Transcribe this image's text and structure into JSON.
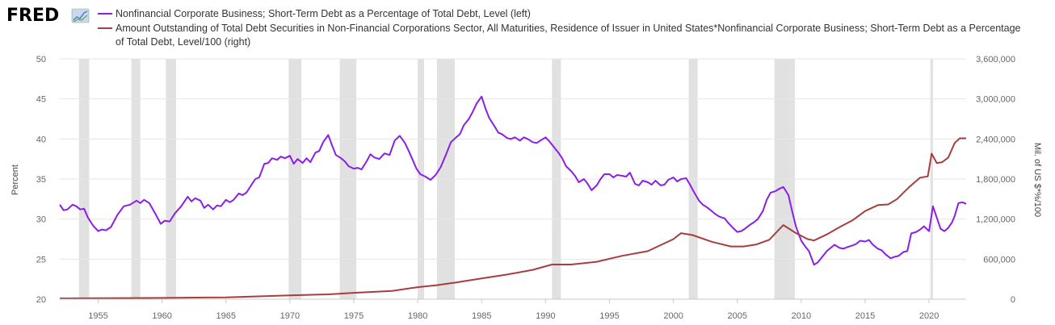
{
  "logo": {
    "text": "FRED",
    "icon": "fred-chart-icon"
  },
  "legend": [
    {
      "label": "Nonfinancial Corporate Business; Short-Term Debt as a Percentage of Total Debt, Level (left)"
    },
    {
      "label_line1": "Amount Outstanding of Total Debt Securities in Non-Financial Corporations Sector, All Maturities, Residence of Issuer in United States*Nonfinancial Corporate Business; Short-Term Debt as a Percentage",
      "label_line2": "of Total Debt, Level/100 (right)"
    }
  ],
  "colors": {
    "series1": "#8a1fe6",
    "series2": "#a73e3e",
    "recession": "#e1e1e1",
    "grid": "#e6e6e6"
  },
  "chart_data": {
    "type": "line",
    "x_axis": {
      "ticks": [
        "1955",
        "1960",
        "1965",
        "1970",
        "1975",
        "1980",
        "1985",
        "1990",
        "1995",
        "2000",
        "2005",
        "2010",
        "2015",
        "2020"
      ],
      "range": [
        1952.0,
        2022.9
      ]
    },
    "y_left": {
      "label": "Percent",
      "range": [
        20,
        50
      ],
      "ticks": [
        "20",
        "25",
        "30",
        "35",
        "40",
        "45",
        "50"
      ]
    },
    "y_right": {
      "label": "Mil. of US $*%/100",
      "range": [
        0,
        3600000
      ],
      "ticks": [
        "0",
        "600,000",
        "1,200,000",
        "1,800,000",
        "2,400,000",
        "3,000,000",
        "3,600,000"
      ]
    },
    "grid": "horizontal",
    "recessions": [
      [
        1953.5,
        1954.3
      ],
      [
        1957.6,
        1958.3
      ],
      [
        1960.3,
        1961.1
      ],
      [
        1969.9,
        1970.9
      ],
      [
        1973.9,
        1975.2
      ],
      [
        1980.0,
        1980.5
      ],
      [
        1981.5,
        1982.9
      ],
      [
        1990.5,
        1991.2
      ],
      [
        2001.2,
        2001.9
      ],
      [
        2007.9,
        2009.5
      ],
      [
        2020.1,
        2020.3
      ]
    ],
    "series": [
      {
        "name": "Nonfinancial Corporate Business; Short-Term Debt as a Percentage of Total Debt, Level (left)",
        "axis": "left",
        "points": [
          [
            1952.0,
            31.8
          ],
          [
            1952.3,
            31.1
          ],
          [
            1952.6,
            31.2
          ],
          [
            1953.0,
            31.8
          ],
          [
            1953.3,
            31.6
          ],
          [
            1953.6,
            31.2
          ],
          [
            1953.9,
            31.3
          ],
          [
            1954.2,
            30.2
          ],
          [
            1954.6,
            29.2
          ],
          [
            1955.0,
            28.5
          ],
          [
            1955.3,
            28.7
          ],
          [
            1955.6,
            28.6
          ],
          [
            1956.0,
            29.0
          ],
          [
            1956.5,
            30.5
          ],
          [
            1957.0,
            31.6
          ],
          [
            1957.5,
            31.8
          ],
          [
            1958.0,
            32.3
          ],
          [
            1958.3,
            32.0
          ],
          [
            1958.6,
            32.4
          ],
          [
            1959.0,
            32.0
          ],
          [
            1959.5,
            30.6
          ],
          [
            1959.9,
            29.4
          ],
          [
            1960.2,
            29.8
          ],
          [
            1960.6,
            29.7
          ],
          [
            1961.0,
            30.7
          ],
          [
            1961.5,
            31.6
          ],
          [
            1962.0,
            32.8
          ],
          [
            1962.3,
            32.2
          ],
          [
            1962.6,
            32.6
          ],
          [
            1963.0,
            32.3
          ],
          [
            1963.3,
            31.4
          ],
          [
            1963.6,
            31.8
          ],
          [
            1964.0,
            31.2
          ],
          [
            1964.3,
            31.7
          ],
          [
            1964.6,
            31.6
          ],
          [
            1965.0,
            32.4
          ],
          [
            1965.3,
            32.1
          ],
          [
            1965.6,
            32.4
          ],
          [
            1966.0,
            33.2
          ],
          [
            1966.3,
            33.0
          ],
          [
            1966.6,
            33.3
          ],
          [
            1967.0,
            34.3
          ],
          [
            1967.3,
            35.0
          ],
          [
            1967.6,
            35.2
          ],
          [
            1968.0,
            36.9
          ],
          [
            1968.3,
            37.0
          ],
          [
            1968.6,
            37.6
          ],
          [
            1969.0,
            37.4
          ],
          [
            1969.3,
            37.8
          ],
          [
            1969.6,
            37.6
          ],
          [
            1970.0,
            37.9
          ],
          [
            1970.3,
            36.9
          ],
          [
            1970.6,
            37.5
          ],
          [
            1971.0,
            37.0
          ],
          [
            1971.3,
            37.6
          ],
          [
            1971.6,
            37.1
          ],
          [
            1972.0,
            38.3
          ],
          [
            1972.3,
            38.5
          ],
          [
            1972.6,
            39.6
          ],
          [
            1973.0,
            40.5
          ],
          [
            1973.3,
            39.2
          ],
          [
            1973.6,
            38.0
          ],
          [
            1974.0,
            37.6
          ],
          [
            1974.3,
            37.2
          ],
          [
            1974.6,
            36.6
          ],
          [
            1975.0,
            36.3
          ],
          [
            1975.3,
            36.4
          ],
          [
            1975.6,
            36.2
          ],
          [
            1976.0,
            37.2
          ],
          [
            1976.3,
            38.1
          ],
          [
            1976.6,
            37.7
          ],
          [
            1977.0,
            37.5
          ],
          [
            1977.4,
            38.2
          ],
          [
            1977.8,
            38.0
          ],
          [
            1978.2,
            39.8
          ],
          [
            1978.6,
            40.4
          ],
          [
            1979.0,
            39.5
          ],
          [
            1979.3,
            38.5
          ],
          [
            1979.6,
            37.4
          ],
          [
            1979.9,
            36.3
          ],
          [
            1980.2,
            35.6
          ],
          [
            1980.6,
            35.3
          ],
          [
            1981.0,
            34.9
          ],
          [
            1981.4,
            35.5
          ],
          [
            1981.8,
            36.5
          ],
          [
            1982.2,
            38.0
          ],
          [
            1982.6,
            39.6
          ],
          [
            1983.0,
            40.2
          ],
          [
            1983.3,
            40.6
          ],
          [
            1983.6,
            41.7
          ],
          [
            1984.0,
            42.5
          ],
          [
            1984.3,
            43.4
          ],
          [
            1984.6,
            44.4
          ],
          [
            1985.0,
            45.3
          ],
          [
            1985.3,
            43.8
          ],
          [
            1985.6,
            42.6
          ],
          [
            1986.0,
            41.6
          ],
          [
            1986.3,
            40.8
          ],
          [
            1986.6,
            40.6
          ],
          [
            1987.0,
            40.1
          ],
          [
            1987.3,
            40.0
          ],
          [
            1987.6,
            40.2
          ],
          [
            1988.0,
            39.8
          ],
          [
            1988.3,
            40.2
          ],
          [
            1988.6,
            40.0
          ],
          [
            1989.0,
            39.6
          ],
          [
            1989.3,
            39.5
          ],
          [
            1989.6,
            39.8
          ],
          [
            1990.0,
            40.2
          ],
          [
            1990.3,
            39.7
          ],
          [
            1990.6,
            39.1
          ],
          [
            1991.0,
            38.3
          ],
          [
            1991.3,
            37.6
          ],
          [
            1991.6,
            36.6
          ],
          [
            1992.0,
            36.0
          ],
          [
            1992.3,
            35.4
          ],
          [
            1992.6,
            34.6
          ],
          [
            1993.0,
            35.0
          ],
          [
            1993.3,
            34.4
          ],
          [
            1993.6,
            33.6
          ],
          [
            1994.0,
            34.2
          ],
          [
            1994.3,
            35.0
          ],
          [
            1994.6,
            35.6
          ],
          [
            1995.0,
            35.6
          ],
          [
            1995.3,
            35.2
          ],
          [
            1995.6,
            35.5
          ],
          [
            1996.0,
            35.4
          ],
          [
            1996.3,
            35.3
          ],
          [
            1996.6,
            35.8
          ],
          [
            1997.0,
            34.4
          ],
          [
            1997.3,
            34.2
          ],
          [
            1997.6,
            34.8
          ],
          [
            1998.0,
            34.6
          ],
          [
            1998.3,
            34.3
          ],
          [
            1998.6,
            34.8
          ],
          [
            1999.0,
            34.2
          ],
          [
            1999.3,
            34.3
          ],
          [
            1999.6,
            34.9
          ],
          [
            2000.0,
            35.2
          ],
          [
            2000.3,
            34.7
          ],
          [
            2000.6,
            35.0
          ],
          [
            2001.0,
            35.1
          ],
          [
            2001.3,
            34.3
          ],
          [
            2001.6,
            33.4
          ],
          [
            2002.0,
            32.3
          ],
          [
            2002.3,
            31.8
          ],
          [
            2002.6,
            31.5
          ],
          [
            2003.0,
            31.0
          ],
          [
            2003.3,
            30.6
          ],
          [
            2003.6,
            30.3
          ],
          [
            2004.0,
            30.1
          ],
          [
            2004.3,
            29.5
          ],
          [
            2004.6,
            29.0
          ],
          [
            2005.0,
            28.4
          ],
          [
            2005.3,
            28.5
          ],
          [
            2005.6,
            28.8
          ],
          [
            2006.0,
            29.3
          ],
          [
            2006.3,
            29.6
          ],
          [
            2006.6,
            30.0
          ],
          [
            2007.0,
            31.0
          ],
          [
            2007.3,
            32.4
          ],
          [
            2007.6,
            33.3
          ],
          [
            2008.0,
            33.5
          ],
          [
            2008.3,
            33.8
          ],
          [
            2008.6,
            34.0
          ],
          [
            2009.0,
            33.0
          ],
          [
            2009.3,
            30.9
          ],
          [
            2009.6,
            29.0
          ],
          [
            2010.0,
            27.3
          ],
          [
            2010.3,
            26.6
          ],
          [
            2010.6,
            26.0
          ],
          [
            2011.0,
            24.3
          ],
          [
            2011.3,
            24.6
          ],
          [
            2011.6,
            25.2
          ],
          [
            2012.0,
            26.0
          ],
          [
            2012.3,
            26.4
          ],
          [
            2012.6,
            26.8
          ],
          [
            2013.0,
            26.4
          ],
          [
            2013.3,
            26.3
          ],
          [
            2013.6,
            26.5
          ],
          [
            2014.0,
            26.7
          ],
          [
            2014.3,
            26.9
          ],
          [
            2014.6,
            27.3
          ],
          [
            2015.0,
            27.2
          ],
          [
            2015.3,
            27.4
          ],
          [
            2015.6,
            26.8
          ],
          [
            2016.0,
            26.3
          ],
          [
            2016.3,
            26.1
          ],
          [
            2016.6,
            25.6
          ],
          [
            2017.0,
            25.1
          ],
          [
            2017.3,
            25.3
          ],
          [
            2017.6,
            25.4
          ],
          [
            2018.0,
            25.9
          ],
          [
            2018.3,
            26.0
          ],
          [
            2018.6,
            28.2
          ],
          [
            2019.0,
            28.4
          ],
          [
            2019.3,
            28.7
          ],
          [
            2019.6,
            29.1
          ],
          [
            2020.0,
            28.5
          ],
          [
            2020.3,
            31.6
          ],
          [
            2020.6,
            30.2
          ],
          [
            2020.9,
            28.8
          ],
          [
            2021.2,
            28.5
          ],
          [
            2021.5,
            28.9
          ],
          [
            2021.8,
            29.6
          ],
          [
            2022.0,
            30.4
          ],
          [
            2022.3,
            32.0
          ],
          [
            2022.6,
            32.1
          ],
          [
            2022.9,
            31.9
          ]
        ]
      },
      {
        "name": "Amount Outstanding of Total Debt Securities in Non-Financial Corporations Sector, All Maturities, Residence of Issuer in United States*Nonfinancial Corporate Business; Short-Term Debt as a Percentage of Total Debt, Level/100 (right)",
        "axis": "right",
        "points": [
          [
            1952.0,
            12000
          ],
          [
            1955.0,
            14000
          ],
          [
            1960.0,
            19000
          ],
          [
            1965.0,
            28000
          ],
          [
            1970.0,
            58000
          ],
          [
            1973.0,
            72000
          ],
          [
            1975.0,
            95000
          ],
          [
            1978.0,
            125000
          ],
          [
            1980.0,
            180000
          ],
          [
            1981.5,
            210000
          ],
          [
            1983.0,
            250000
          ],
          [
            1985.0,
            310000
          ],
          [
            1987.0,
            370000
          ],
          [
            1989.0,
            440000
          ],
          [
            1990.5,
            520000
          ],
          [
            1992.0,
            520000
          ],
          [
            1994.0,
            560000
          ],
          [
            1996.0,
            650000
          ],
          [
            1998.0,
            720000
          ],
          [
            2000.0,
            900000
          ],
          [
            2000.6,
            990000
          ],
          [
            2001.5,
            960000
          ],
          [
            2003.0,
            860000
          ],
          [
            2004.5,
            790000
          ],
          [
            2005.5,
            790000
          ],
          [
            2006.5,
            820000
          ],
          [
            2007.5,
            890000
          ],
          [
            2008.6,
            1110000
          ],
          [
            2009.6,
            990000
          ],
          [
            2010.5,
            900000
          ],
          [
            2011.0,
            880000
          ],
          [
            2012.0,
            970000
          ],
          [
            2013.0,
            1080000
          ],
          [
            2014.0,
            1180000
          ],
          [
            2015.0,
            1320000
          ],
          [
            2016.0,
            1410000
          ],
          [
            2016.8,
            1420000
          ],
          [
            2017.5,
            1500000
          ],
          [
            2018.5,
            1690000
          ],
          [
            2019.3,
            1820000
          ],
          [
            2019.9,
            1840000
          ],
          [
            2020.2,
            2180000
          ],
          [
            2020.6,
            2040000
          ],
          [
            2021.0,
            2050000
          ],
          [
            2021.5,
            2120000
          ],
          [
            2022.0,
            2340000
          ],
          [
            2022.4,
            2410000
          ],
          [
            2022.9,
            2410000
          ]
        ]
      }
    ]
  }
}
